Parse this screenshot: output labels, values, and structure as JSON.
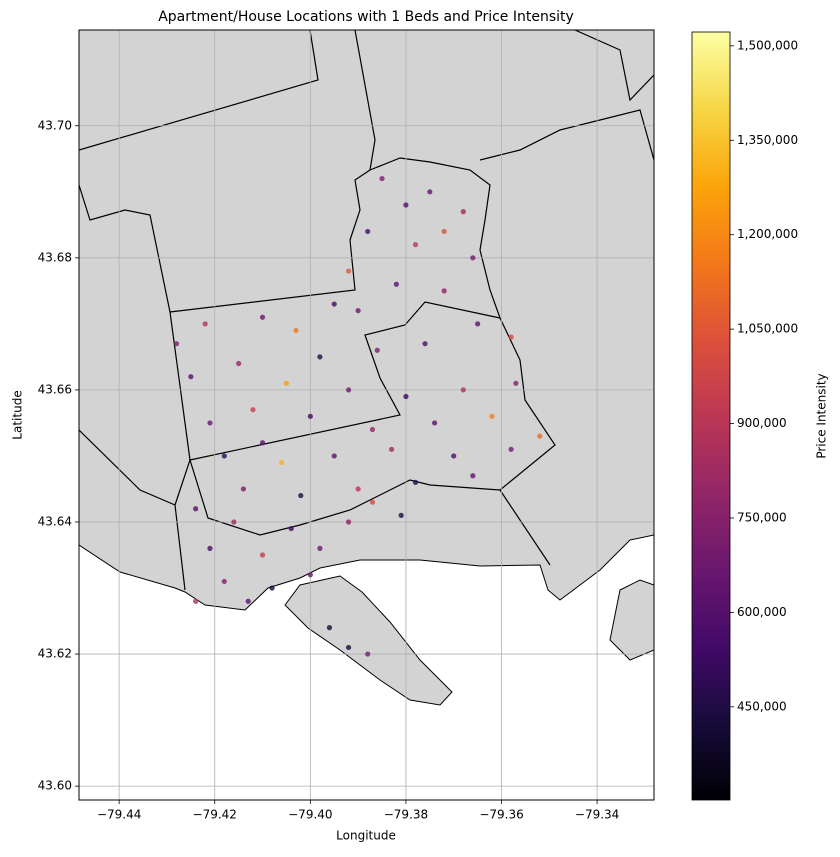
{
  "chart_data": {
    "type": "scatter",
    "title": "Apartment/House Locations with 1 Beds and Price Intensity",
    "x_label": "Longitude",
    "y_label": "Latitude",
    "colorbar_label": "Price Intensity",
    "cmap": "inferno",
    "grid": true,
    "xlim": [
      -79.4484,
      -79.3281
    ],
    "ylim": [
      43.5979,
      43.7145
    ],
    "clim": [
      302000,
      1522000
    ],
    "xticks": [
      {
        "value": -79.44,
        "label": "−79.44"
      },
      {
        "value": -79.42,
        "label": "−79.42"
      },
      {
        "value": -79.4,
        "label": "−79.40"
      },
      {
        "value": -79.38,
        "label": "−79.38"
      },
      {
        "value": -79.36,
        "label": "−79.36"
      },
      {
        "value": -79.34,
        "label": "−79.34"
      }
    ],
    "yticks": [
      {
        "value": 43.6,
        "label": "43.60"
      },
      {
        "value": 43.62,
        "label": "43.62"
      },
      {
        "value": 43.64,
        "label": "43.64"
      },
      {
        "value": 43.66,
        "label": "43.66"
      },
      {
        "value": 43.68,
        "label": "43.68"
      },
      {
        "value": 43.7,
        "label": "43.70"
      }
    ],
    "cticks": [
      {
        "value": 450000,
        "label": "450,000"
      },
      {
        "value": 600000,
        "label": "600,000"
      },
      {
        "value": 750000,
        "label": "750,000"
      },
      {
        "value": 900000,
        "label": "900,000"
      },
      {
        "value": 1050000,
        "label": "1,050,000"
      },
      {
        "value": 1200000,
        "label": "1,200,000"
      },
      {
        "value": 1350000,
        "label": "1,350,000"
      },
      {
        "value": 1500000,
        "label": "1,500,000"
      }
    ],
    "x": [
      -79.385,
      -79.375,
      -79.368,
      -79.388,
      -79.378,
      -79.366,
      -79.392,
      -79.382,
      -79.372,
      -79.395,
      -79.41,
      -79.422,
      -79.403,
      -79.365,
      -79.358,
      -79.376,
      -79.386,
      -79.398,
      -79.415,
      -79.425,
      -79.405,
      -79.392,
      -79.38,
      -79.368,
      -79.357,
      -79.362,
      -79.374,
      -79.387,
      -79.4,
      -79.412,
      -79.421,
      -79.418,
      -79.406,
      -79.395,
      -79.383,
      -79.37,
      -79.358,
      -79.352,
      -79.366,
      -79.378,
      -79.39,
      -79.402,
      -79.414,
      -79.424,
      -79.416,
      -79.404,
      -79.392,
      -79.381,
      -79.398,
      -79.41,
      -79.421,
      -79.418,
      -79.408,
      -79.4,
      -79.424,
      -79.413,
      -79.392,
      -79.388,
      -79.396,
      -79.372,
      -79.38,
      -79.39,
      -79.428,
      -79.41,
      -79.387
    ],
    "y": [
      43.692,
      43.69,
      43.687,
      43.684,
      43.682,
      43.68,
      43.678,
      43.676,
      43.675,
      43.673,
      43.671,
      43.67,
      43.669,
      43.67,
      43.668,
      43.667,
      43.666,
      43.665,
      43.664,
      43.662,
      43.661,
      43.66,
      43.659,
      43.66,
      43.661,
      43.656,
      43.655,
      43.654,
      43.656,
      43.657,
      43.655,
      43.65,
      43.649,
      43.65,
      43.651,
      43.65,
      43.651,
      43.653,
      43.647,
      43.646,
      43.645,
      43.644,
      43.645,
      43.642,
      43.64,
      43.639,
      43.64,
      43.641,
      43.636,
      43.635,
      43.636,
      43.631,
      43.63,
      43.632,
      43.628,
      43.628,
      43.621,
      43.62,
      43.624,
      43.684,
      43.688,
      43.672,
      43.667,
      43.652,
      43.643
    ],
    "color_values": [
      720000,
      650000,
      820000,
      580000,
      910000,
      690000,
      1050000,
      610000,
      760000,
      540000,
      680000,
      890000,
      1150000,
      630000,
      980000,
      560000,
      720000,
      470000,
      800000,
      600000,
      1250000,
      690000,
      520000,
      870000,
      740000,
      1180000,
      610000,
      780000,
      550000,
      940000,
      660000,
      500000,
      1300000,
      620000,
      830000,
      580000,
      700000,
      1120000,
      640000,
      480000,
      900000,
      430000,
      710000,
      590000,
      820000,
      520000,
      760000,
      450000,
      680000,
      940000,
      560000,
      730000,
      420000,
      650000,
      870000,
      610000,
      440000,
      700000,
      400000,
      1020000,
      590000,
      670000,
      720000,
      610000,
      1000000
    ]
  }
}
